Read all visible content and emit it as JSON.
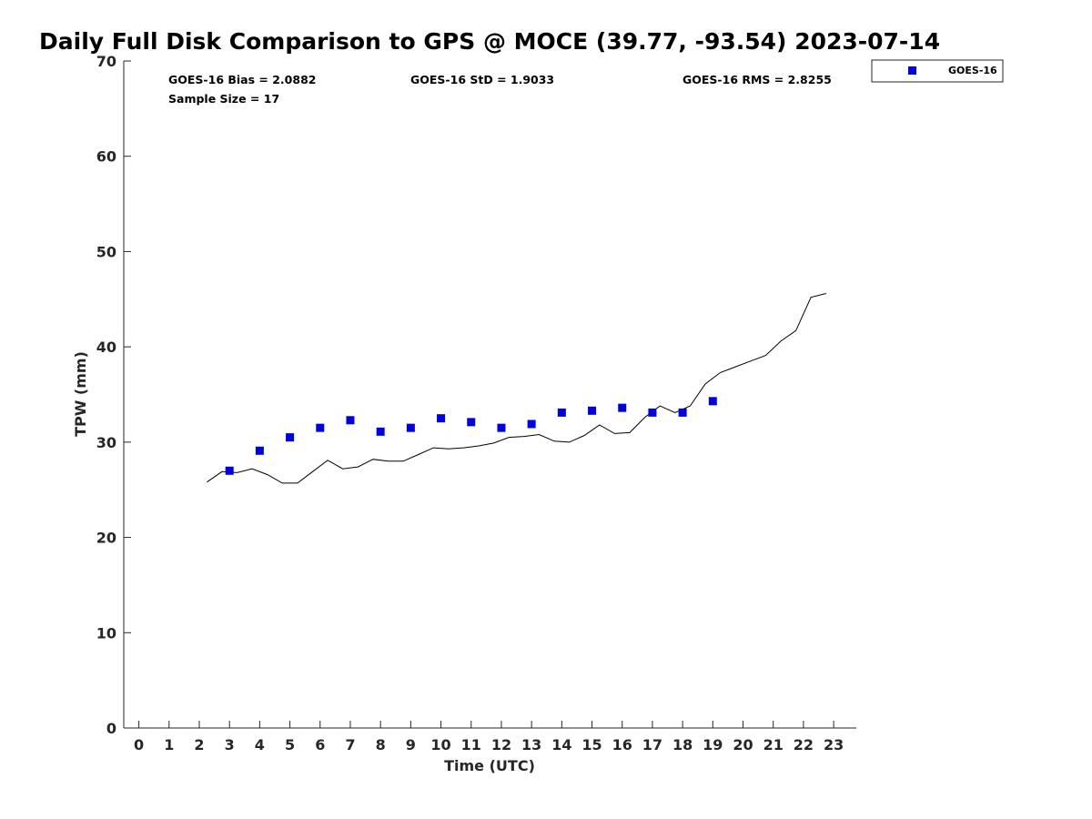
{
  "chart_data": {
    "type": "scatter",
    "title": "Daily Full Disk Comparison to GPS @ MOCE (39.77, -93.54) 2023-07-14",
    "xlabel": "Time (UTC)",
    "ylabel": "TPW (mm)",
    "xlim": [
      -0.5,
      23.75
    ],
    "ylim": [
      0,
      70
    ],
    "xticks": [
      "0",
      "1",
      "2",
      "3",
      "4",
      "5",
      "6",
      "7",
      "8",
      "9",
      "10",
      "11",
      "12",
      "13",
      "14",
      "15",
      "16",
      "17",
      "18",
      "19",
      "20",
      "21",
      "22",
      "23"
    ],
    "yticks": [
      "0",
      "10",
      "20",
      "30",
      "40",
      "50",
      "60",
      "70"
    ],
    "grid": false,
    "legend_position": "top-right (outside plot)",
    "stats": {
      "bias": "GOES-16 Bias = 2.0882",
      "std": "GOES-16 StD = 1.9033",
      "rms": "GOES-16 RMS = 2.8255",
      "sample": "Sample Size = 17"
    },
    "series": [
      {
        "name": "GOES-16",
        "kind": "scatter",
        "color": "#0000dd",
        "x": [
          3,
          4,
          5,
          6,
          7,
          8,
          9,
          10,
          11,
          12,
          13,
          14,
          15,
          16,
          17,
          18,
          19
        ],
        "y": [
          27.0,
          29.1,
          30.5,
          31.5,
          32.3,
          31.1,
          31.5,
          32.5,
          32.1,
          31.5,
          31.9,
          33.1,
          33.3,
          33.6,
          33.1,
          33.1,
          34.3
        ]
      },
      {
        "name": "GPS",
        "kind": "line",
        "color": "#000000",
        "x": [
          2.25,
          2.75,
          3.25,
          3.75,
          4.25,
          4.75,
          5.25,
          5.75,
          6.25,
          6.75,
          7.25,
          7.75,
          8.25,
          8.75,
          9.25,
          9.75,
          10.25,
          10.75,
          11.25,
          11.75,
          12.25,
          12.75,
          13.25,
          13.75,
          14.25,
          14.75,
          15.25,
          15.75,
          16.25,
          16.75,
          17.25,
          17.75,
          18.25,
          18.75,
          19.25,
          19.75,
          20.25,
          20.75,
          21.25,
          21.75,
          22.25,
          22.75
        ],
        "y": [
          25.8,
          26.9,
          26.8,
          27.2,
          26.6,
          25.7,
          25.7,
          26.9,
          28.1,
          27.2,
          27.4,
          28.2,
          28.0,
          28.0,
          28.7,
          29.4,
          29.3,
          29.4,
          29.6,
          29.9,
          30.5,
          30.6,
          30.8,
          30.1,
          30.0,
          30.7,
          31.8,
          30.9,
          31.0,
          32.6,
          33.8,
          33.1,
          33.8,
          36.1,
          37.3,
          37.9,
          38.5,
          39.1,
          40.6,
          41.7,
          45.2,
          45.6
        ]
      }
    ]
  }
}
